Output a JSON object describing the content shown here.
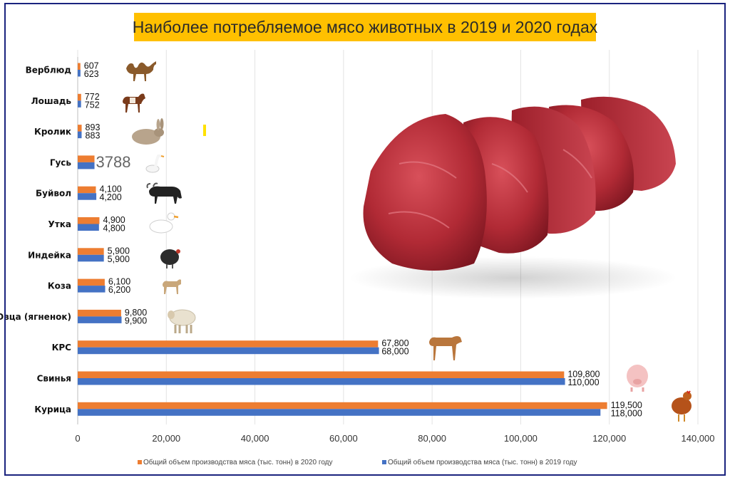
{
  "title": "Наиболее потребляемое мясо животных в 2019 и 2020 годах",
  "colors": {
    "series_2020": "#ed7d31",
    "series_2019": "#4472c4",
    "title_bg": "#ffc000",
    "frame": "#1a237e"
  },
  "legend": {
    "placement": "bottom",
    "items": [
      "Общий объем производства мяса (тыс. тонн) в 2020 году",
      "Общий объем производства мяса (тыс. тонн) в 2019 году"
    ]
  },
  "chart_data": {
    "type": "bar",
    "orientation": "horizontal",
    "title": "Наиболее потребляемое мясо животных в 2019 и 2020 годах",
    "categories": [
      "Верблюд",
      "Лошадь",
      "Кролик",
      "Гусь",
      "Буйвол",
      "Утка",
      "Индейка",
      "Коза",
      "Овца (ягненок)",
      "КРС",
      "Свинья",
      "Курица"
    ],
    "series": [
      {
        "name": "Общий объем производства мяса (тыс. тонн) в 2020 году",
        "values": [
          607,
          772,
          893,
          3788,
          4100,
          4900,
          5900,
          6100,
          9800,
          67800,
          109800,
          119500
        ],
        "labels": [
          "607",
          "772",
          "893",
          "3788",
          "4,100",
          "4,900",
          "5,900",
          "6,100",
          "9,800",
          "67,800",
          "109,800",
          "119,500"
        ]
      },
      {
        "name": "Общий объем производства мяса (тыс. тонн) в 2019 году",
        "values": [
          623,
          752,
          883,
          3788,
          4200,
          4800,
          5900,
          6200,
          9900,
          68000,
          110000,
          118000
        ],
        "labels": [
          "623",
          "752",
          "883",
          "",
          "4,200",
          "4,800",
          "5,900",
          "6,200",
          "9,900",
          "68,000",
          "110,000",
          "118,000"
        ]
      }
    ],
    "xlim": [
      0,
      140000
    ],
    "xticks": [
      0,
      20000,
      40000,
      60000,
      80000,
      100000,
      120000,
      140000
    ],
    "xtick_labels": [
      "0",
      "20,000",
      "40,000",
      "60,000",
      "80,000",
      "100,000",
      "120,000",
      "140,000"
    ],
    "grid": "vertical",
    "legend": "bottom"
  },
  "images": [
    "camel-icon",
    "horse-icon",
    "rabbit-icon",
    "goose-icon",
    "buffalo-icon",
    "duck-icon",
    "turkey-icon",
    "goat-icon",
    "sheep-icon",
    "calf-icon",
    "pig-icon",
    "chicken-icon",
    "raw-meat-photo"
  ]
}
